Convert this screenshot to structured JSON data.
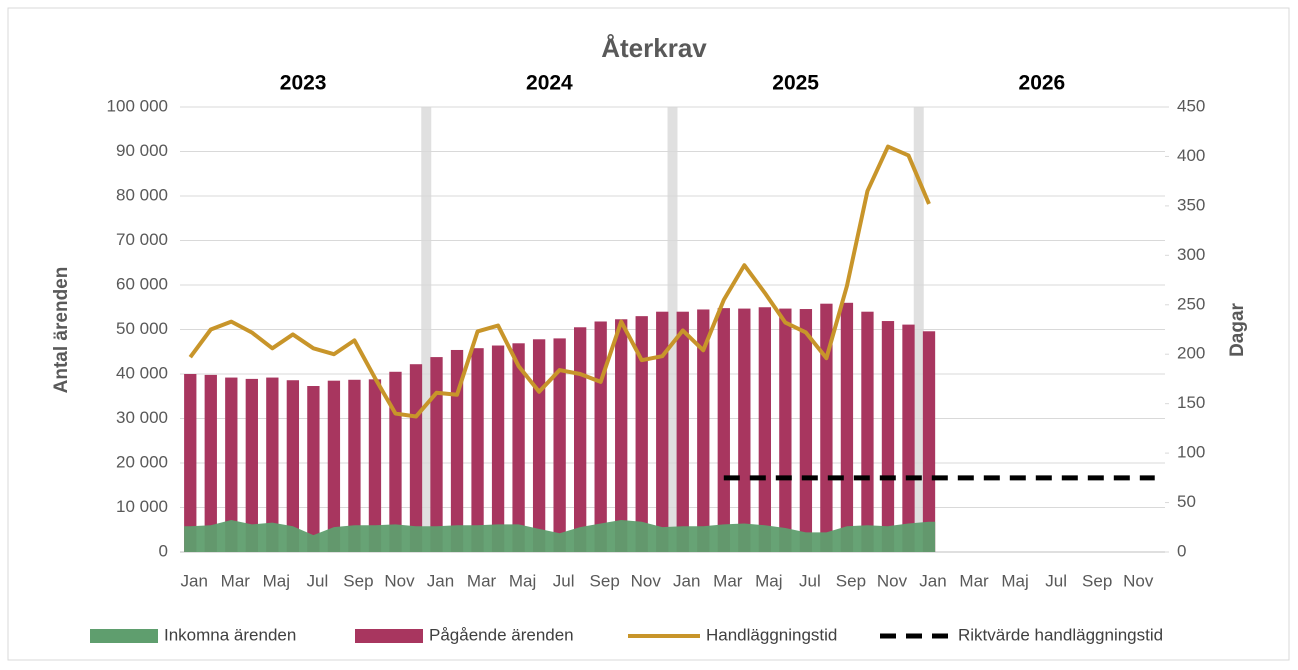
{
  "chart_data": {
    "type": "combo",
    "title": "Återkrav",
    "y_label": "Antal ärenden",
    "y2_label": "Dagar",
    "annotations": [
      "2023",
      "2024",
      "2025",
      "2026"
    ],
    "categories": [
      "Jan",
      null,
      "Mar",
      null,
      "Maj",
      null,
      "Jul",
      null,
      "Sep",
      null,
      "Nov",
      null,
      "Jan",
      null,
      "Mar",
      null,
      "Maj",
      null,
      "Jul",
      null,
      "Sep",
      null,
      "Nov",
      null,
      "Jan",
      null,
      "Mar",
      null,
      "Maj",
      null,
      "Jul",
      null,
      "Sep",
      null,
      "Nov",
      null,
      "Jan",
      null,
      "Mar",
      null,
      "Maj",
      null,
      "Jul",
      null,
      "Sep",
      null,
      "Nov",
      null
    ],
    "ylim": [
      0,
      100000
    ],
    "yticks": [
      0,
      {
        "value": 10000,
        "label": "10 000"
      },
      {
        "value": 20000,
        "label": "20 000"
      },
      {
        "value": 30000,
        "label": "30 000"
      },
      {
        "value": 40000,
        "label": "40 000"
      },
      {
        "value": 50000,
        "label": "50 000"
      },
      {
        "value": 60000,
        "label": "60 000"
      },
      {
        "value": 70000,
        "label": "70 000"
      },
      {
        "value": 80000,
        "label": "80 000"
      },
      {
        "value": 90000,
        "label": "90 000"
      },
      {
        "value": 100000,
        "label": "100 000"
      }
    ],
    "y2lim": [
      0,
      450
    ],
    "y2ticks": [
      0,
      50,
      100,
      150,
      200,
      250,
      300,
      350,
      400,
      450
    ],
    "grid": true,
    "legend": "bottom",
    "series": [
      {
        "name": "Pågående ärenden",
        "type": "bar",
        "color": "#a8365f",
        "values": [
          40000,
          39800,
          39200,
          38900,
          39200,
          38600,
          37300,
          38500,
          38700,
          38800,
          40500,
          42200,
          43800,
          45400,
          45800,
          46400,
          46900,
          47800,
          48000,
          50500,
          51800,
          52300,
          53000,
          54000,
          54000,
          54500,
          54800,
          54700,
          55000,
          54700,
          54600,
          55800,
          56000,
          54000,
          51900,
          51100,
          49600,
          null,
          null,
          null,
          null,
          null,
          null,
          null,
          null,
          null,
          null,
          null
        ]
      },
      {
        "name": "Inkomna ärenden",
        "type": "area",
        "color": "#5f9e6e",
        "values": [
          5800,
          6000,
          7200,
          6200,
          6600,
          5800,
          3800,
          5600,
          6000,
          6000,
          6200,
          5800,
          5800,
          6000,
          6000,
          6200,
          6200,
          5200,
          4200,
          5600,
          6400,
          7200,
          6800,
          5600,
          5800,
          5800,
          6200,
          6400,
          6000,
          5400,
          4400,
          4400,
          5800,
          6000,
          5800,
          6400,
          6800,
          null,
          null,
          null,
          null,
          null,
          null,
          null,
          null,
          null,
          null,
          null
        ]
      },
      {
        "name": "Handläggningstid",
        "type": "line",
        "axis": "y2",
        "color": "#c8952a",
        "values": [
          197,
          225,
          233,
          222,
          206,
          220,
          206,
          200,
          214,
          176,
          140,
          137,
          161,
          159,
          223,
          229,
          188,
          162,
          184,
          180,
          172,
          233,
          194,
          198,
          224,
          204,
          255,
          290,
          262,
          232,
          222,
          196,
          269,
          365,
          410,
          401,
          352,
          null,
          null,
          null,
          null,
          null,
          null,
          null,
          null,
          null,
          null,
          null
        ]
      },
      {
        "name": "Riktvärde handläggningstid",
        "type": "line",
        "axis": "y2",
        "color": "#000000",
        "dash": true,
        "values": [
          null,
          null,
          null,
          null,
          null,
          null,
          null,
          null,
          null,
          null,
          null,
          null,
          null,
          null,
          null,
          null,
          null,
          null,
          null,
          null,
          null,
          null,
          null,
          null,
          null,
          null,
          75,
          75,
          75,
          75,
          75,
          75,
          75,
          75,
          75,
          75,
          75,
          75,
          75,
          75,
          75,
          75,
          75,
          75,
          75,
          75,
          75,
          75
        ]
      }
    ]
  }
}
